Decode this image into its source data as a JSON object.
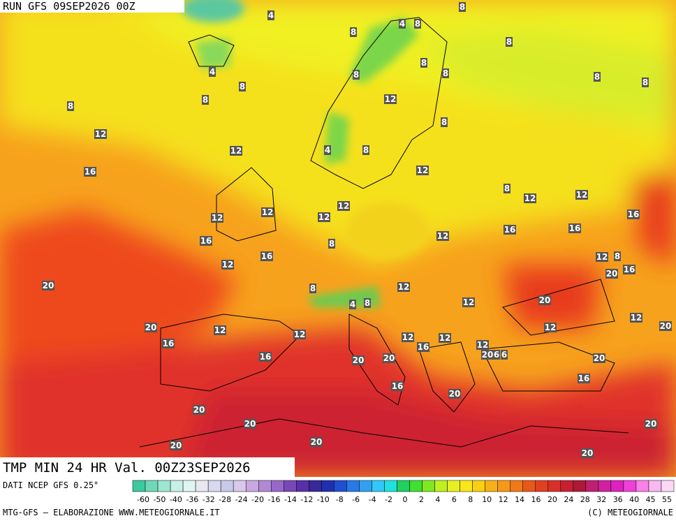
{
  "header": {
    "run": "RUN GFS 09SEP2026 00Z"
  },
  "title": "TMP MIN 24 HR Val. 00Z23SEP2026",
  "map": {
    "labels": [
      8,
      4,
      4,
      8,
      8,
      8,
      4,
      8,
      8,
      8,
      8,
      8,
      8,
      8,
      8,
      12,
      8,
      12,
      4,
      8,
      12,
      16,
      12,
      8,
      12,
      12,
      12,
      12,
      12,
      12,
      16,
      16,
      16,
      12,
      16,
      8,
      12,
      8,
      16,
      12,
      16,
      20,
      20,
      8,
      12,
      4,
      8,
      12,
      20,
      12,
      20,
      20,
      12,
      12,
      12,
      12,
      12,
      16,
      12,
      16,
      20,
      6,
      6,
      16,
      20,
      20,
      20,
      16,
      16,
      20,
      20,
      20,
      20,
      20,
      20,
      20
    ]
  },
  "legend": {
    "source": "DATI NCEP GFS 0.25°",
    "labels": [
      -60,
      -50,
      -40,
      -36,
      -32,
      -28,
      -24,
      -20,
      -16,
      -14,
      -12,
      -10,
      -8,
      -6,
      -4,
      -2,
      0,
      2,
      4,
      6,
      8,
      10,
      12,
      14,
      16,
      20,
      24,
      28,
      32,
      36,
      40,
      45,
      55
    ]
  },
  "footer": {
    "left": "MTG-GFS — ELABORAZIONE WWW.METEOGIORNALE.IT",
    "right": "(C) METEOGIORNALE"
  }
}
